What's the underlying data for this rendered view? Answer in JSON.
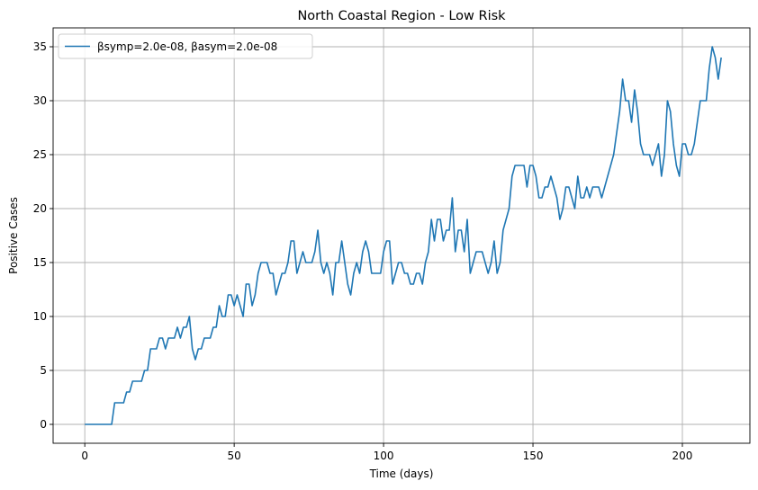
{
  "chart_data": {
    "type": "line",
    "title": "North Coastal Region - Low Risk",
    "xlabel": "Time (days)",
    "ylabel": "Positive Cases",
    "xlim": [
      -10.6,
      222.6
    ],
    "ylim": [
      -1.75,
      36.75
    ],
    "xticks": [
      0,
      50,
      100,
      150,
      200
    ],
    "yticks": [
      0,
      5,
      10,
      15,
      20,
      25,
      30,
      35
    ],
    "grid": true,
    "legend_position": "top-left",
    "series": [
      {
        "name": "βsymp=2.0e-08, βasym=2.0e-08",
        "color": "#1f77b4",
        "x_start": 0,
        "x_step": 1,
        "values": [
          0,
          0,
          0,
          0,
          0,
          0,
          0,
          0,
          0,
          0,
          2,
          2,
          2,
          2,
          3,
          3,
          4,
          4,
          4,
          4,
          5,
          5,
          7,
          7,
          7,
          8,
          8,
          7,
          8,
          8,
          8,
          9,
          8,
          9,
          9,
          10,
          7,
          6,
          7,
          7,
          8,
          8,
          8,
          9,
          9,
          11,
          10,
          10,
          12,
          12,
          11,
          12,
          11,
          10,
          13,
          13,
          11,
          12,
          14,
          15,
          15,
          15,
          14,
          14,
          12,
          13,
          14,
          14,
          15,
          17,
          17,
          14,
          15,
          16,
          15,
          15,
          15,
          16,
          18,
          15,
          14,
          15,
          14,
          12,
          15,
          15,
          17,
          15,
          13,
          12,
          14,
          15,
          14,
          16,
          17,
          16,
          14,
          14,
          14,
          14,
          16,
          17,
          17,
          13,
          14,
          15,
          15,
          14,
          14,
          13,
          13,
          14,
          14,
          13,
          15,
          16,
          19,
          17,
          19,
          19,
          17,
          18,
          18,
          21,
          16,
          18,
          18,
          16,
          19,
          14,
          15,
          16,
          16,
          16,
          15,
          14,
          15,
          17,
          14,
          15,
          18,
          19,
          20,
          23,
          24,
          24,
          24,
          24,
          22,
          24,
          24,
          23,
          21,
          21,
          22,
          22,
          23,
          22,
          21,
          19,
          20,
          22,
          22,
          21,
          20,
          23,
          21,
          21,
          22,
          21,
          22,
          22,
          22,
          21,
          22,
          23,
          24,
          25,
          27,
          29,
          32,
          30,
          30,
          28,
          31,
          29,
          26,
          25,
          25,
          25,
          24,
          25,
          26,
          23,
          25,
          30,
          29,
          26,
          24,
          23,
          26,
          26,
          25,
          25,
          26,
          28,
          30,
          30,
          30,
          33,
          35,
          34,
          32,
          34
        ]
      }
    ]
  }
}
